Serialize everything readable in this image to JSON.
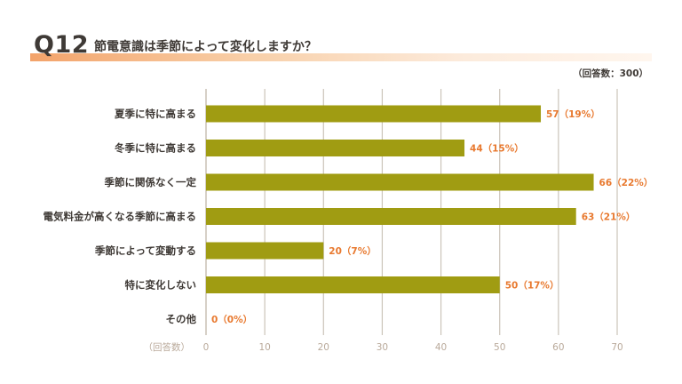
{
  "header": {
    "qnum": "Q12",
    "question": "節電意識は季節によって変化しますか？",
    "note": "（回答数：300）"
  },
  "colors": {
    "bar": "#a09c12",
    "value_label": "#e8792f",
    "grid": "#cbc4b9",
    "tick": "#b9a99a",
    "category": "#3f3a36"
  },
  "chart_data": {
    "type": "bar",
    "orientation": "horizontal",
    "categories": [
      "夏季に特に高まる",
      "冬季に特に高まる",
      "季節に関係なく一定",
      "電気料金が高くなる季節に高まる",
      "季節によって変動する",
      "特に変化しない",
      "その他"
    ],
    "values": [
      57,
      44,
      66,
      63,
      20,
      50,
      0
    ],
    "value_labels": [
      "57（19%）",
      "44（15%）",
      "66（22%）",
      "63（21%）",
      "20（7%）",
      "50（17%）",
      "0（0%）"
    ],
    "xlabel": "（回答数）",
    "xlim": [
      0,
      70
    ],
    "xticks": [
      0,
      10,
      20,
      30,
      40,
      50,
      60,
      70
    ],
    "grid": true,
    "title": "節電意識は季節によって変化しますか？"
  }
}
